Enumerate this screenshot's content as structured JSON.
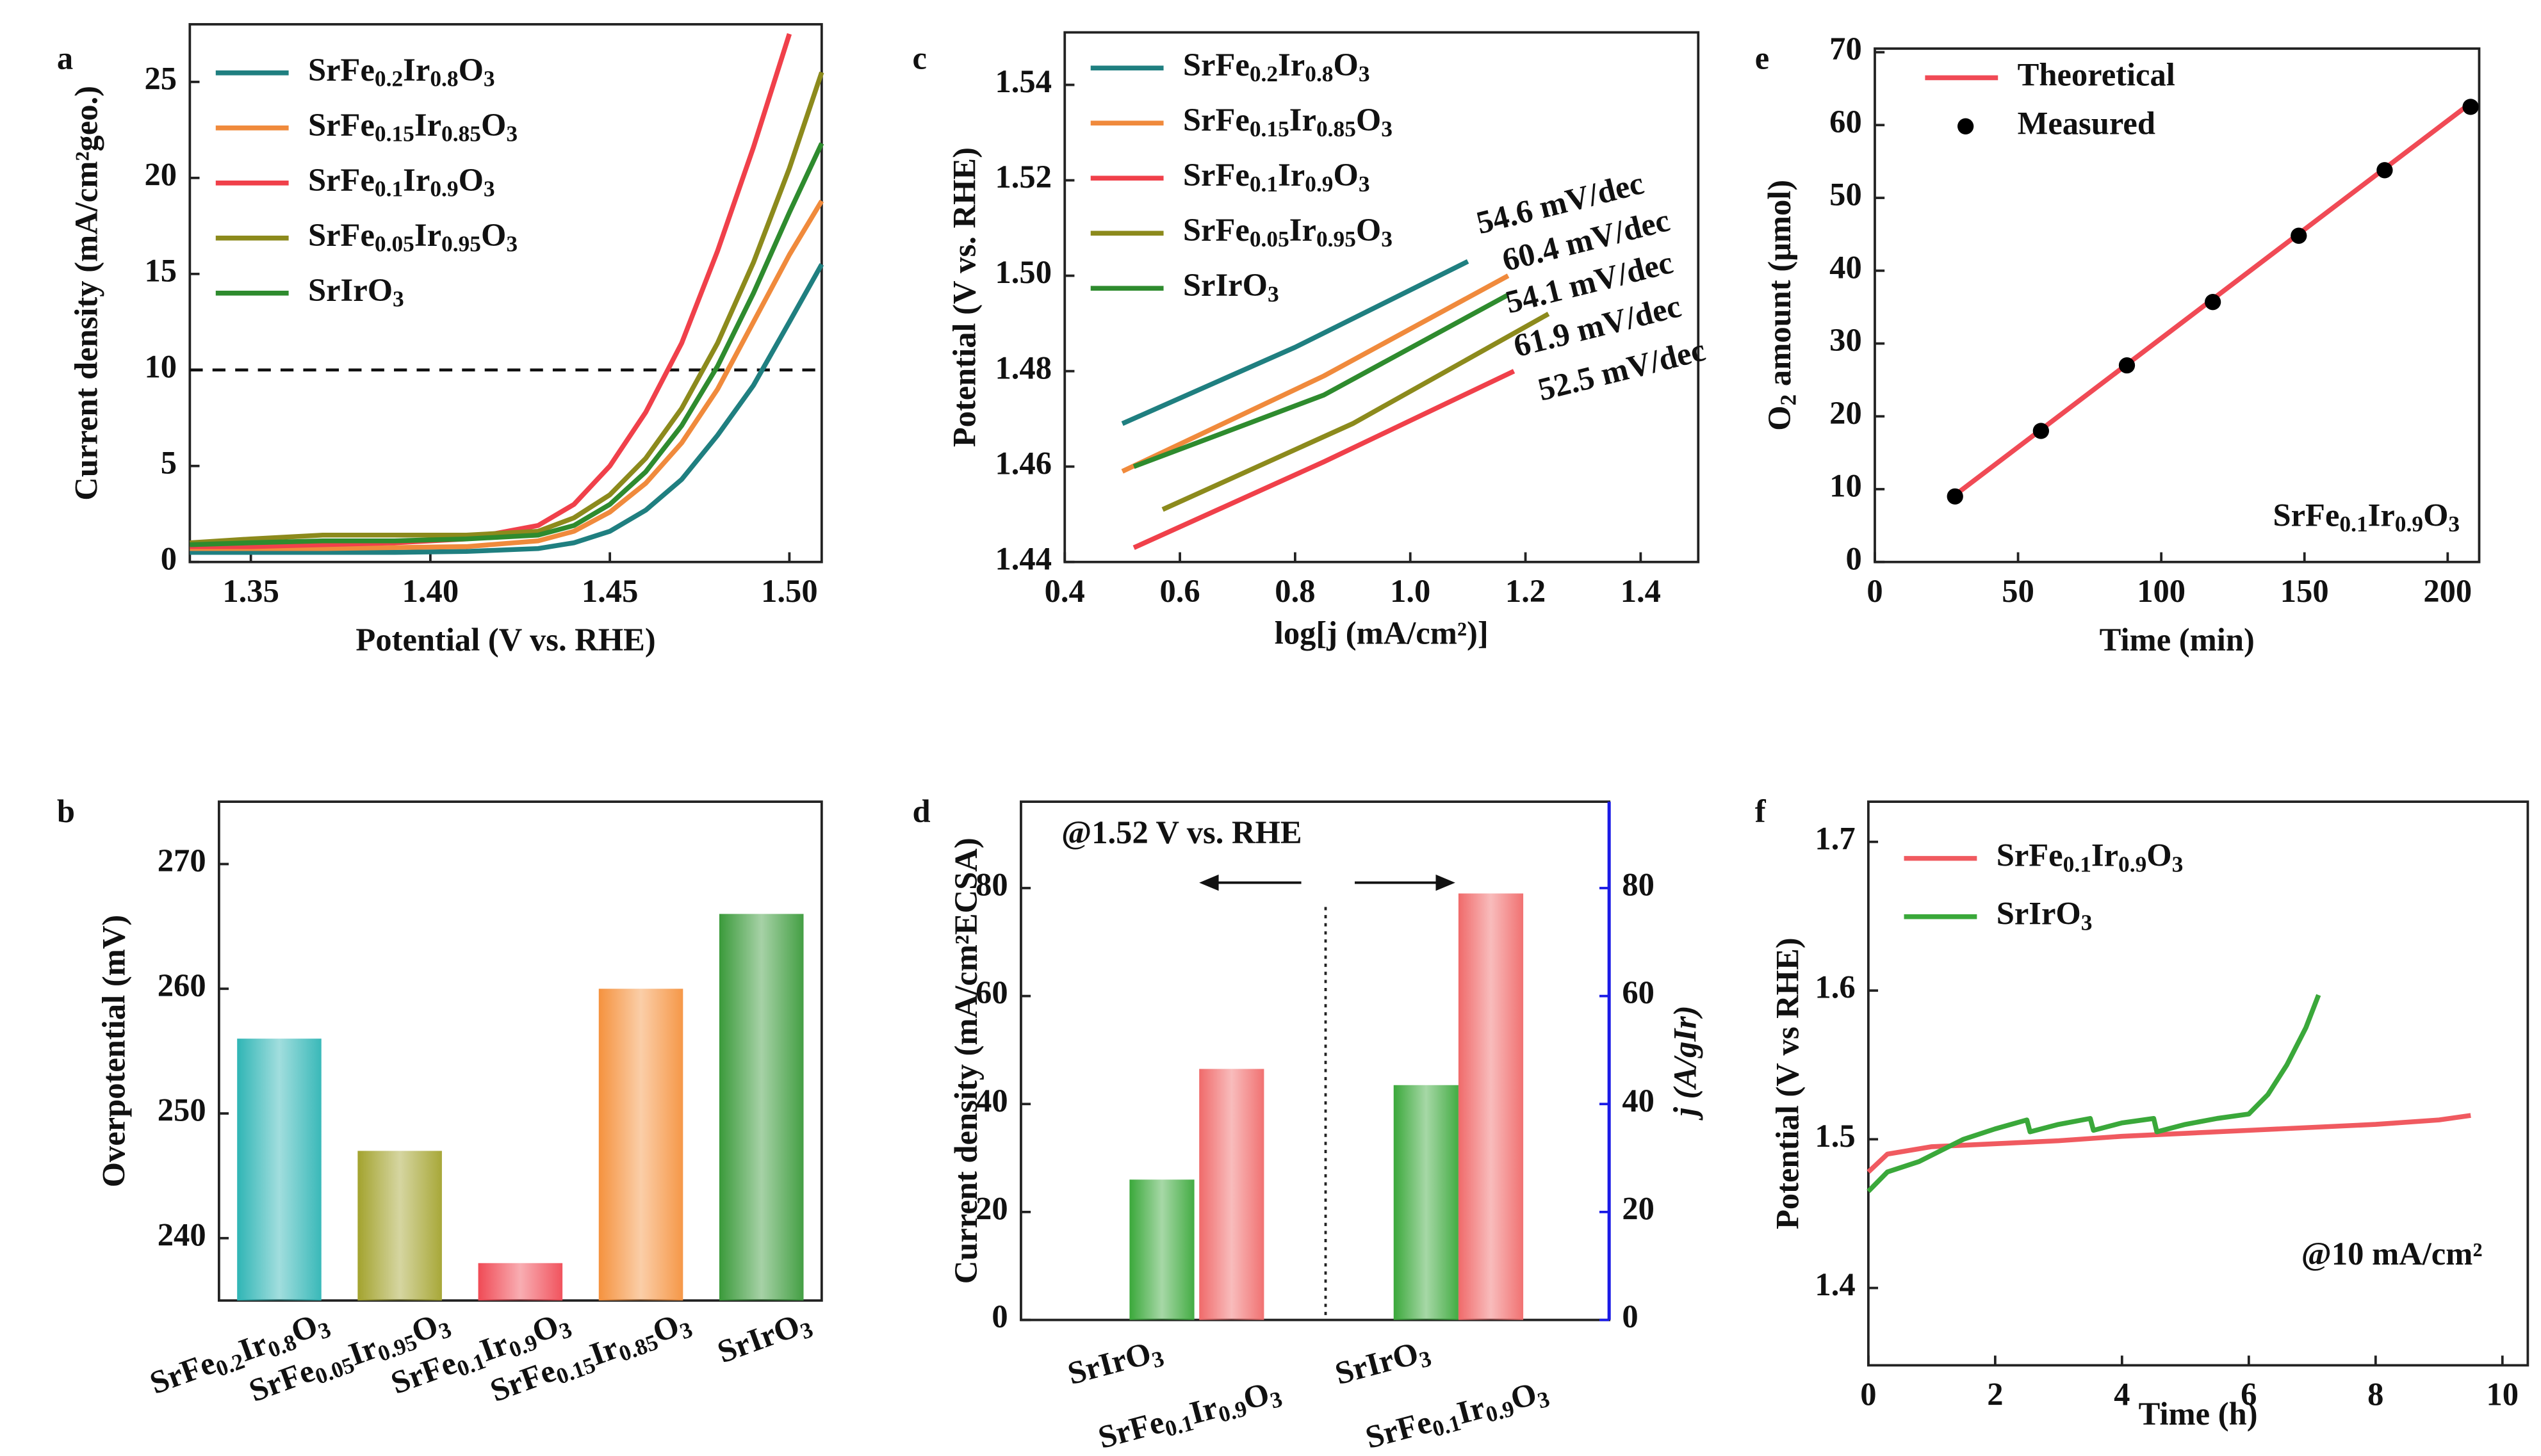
{
  "chart_data": [
    {
      "type": "line",
      "label": "a",
      "xlabel": "Potential (V vs. RHE)",
      "ylabel": "Current density (mA/cm²geo.)",
      "x": [
        1.333,
        1.35,
        1.37,
        1.39,
        1.41,
        1.43,
        1.44,
        1.45,
        1.46,
        1.47,
        1.48,
        1.49,
        1.5,
        1.509
      ],
      "xlim": [
        1.333,
        1.509
      ],
      "xticks": [
        1.35,
        {
          "value": 1.4,
          "label": "1.40"
        },
        1.45,
        {
          "value": 1.5,
          "label": "1.50"
        }
      ],
      "ylim": [
        0,
        28
      ],
      "yticks": [
        0,
        5,
        10,
        15,
        20,
        25
      ],
      "hline": 10,
      "legend": "upper left",
      "series": [
        {
          "name": "SrFe0.2Ir0.8O3",
          "color": "#1f7f80",
          "values": [
            0.5,
            0.5,
            0.5,
            0.5,
            0.55,
            0.7,
            1.0,
            1.6,
            2.7,
            4.3,
            6.6,
            9.2,
            12.5,
            15.5
          ]
        },
        {
          "name": "SrFe0.15Ir0.85O3",
          "color": "#f08a3c",
          "values": [
            0.7,
            0.7,
            0.7,
            0.75,
            0.8,
            1.1,
            1.6,
            2.6,
            4.1,
            6.2,
            9.0,
            12.5,
            16.0,
            18.8
          ]
        },
        {
          "name": "SrFe0.1Ir0.9O3",
          "color": "#f0404a",
          "values": [
            0.8,
            0.8,
            0.9,
            1.0,
            1.2,
            1.9,
            3.0,
            5.0,
            7.8,
            11.4,
            16.2,
            21.6,
            27.5,
            null
          ]
        },
        {
          "name": "SrFe0.05Ir0.95O3",
          "color": "#8c8a1c",
          "values": [
            1.0,
            1.2,
            1.4,
            1.4,
            1.4,
            1.6,
            2.3,
            3.5,
            5.4,
            8.0,
            11.4,
            15.6,
            20.5,
            25.5
          ]
        },
        {
          "name": "SrIrO3",
          "color": "#2e8b2e",
          "values": [
            0.9,
            1.0,
            1.1,
            1.1,
            1.2,
            1.4,
            1.9,
            3.0,
            4.7,
            7.1,
            10.2,
            14.0,
            18.2,
            21.8
          ]
        }
      ]
    },
    {
      "type": "bar",
      "label": "b",
      "ylabel": "Overpotential (mV)",
      "categories": [
        "SrFe0.2Ir0.8O3",
        "SrFe0.05Ir0.95O3",
        "SrFe0.1Ir0.9O3",
        "SrFe0.15Ir0.85O3",
        "SrIrO3"
      ],
      "values": [
        256,
        247,
        238,
        260,
        266
      ],
      "colors": [
        "#2fb5b5",
        "#a3a32e",
        "#f04a55",
        "#f5923e",
        "#3a9a3a"
      ],
      "ylim": [
        235,
        275
      ],
      "yticks": [
        240,
        250,
        260,
        270
      ]
    },
    {
      "type": "line",
      "label": "c",
      "xlabel": "log[j (mA/cm²)]",
      "ylabel": "Potential (V vs. RHE)",
      "xlim": [
        0.4,
        1.5
      ],
      "xticks": [
        0.4,
        0.6,
        0.8,
        {
          "value": 1,
          "label": "1.0"
        },
        1.2,
        1.4
      ],
      "ylim": [
        1.44,
        1.551
      ],
      "yticks": [
        1.44,
        1.46,
        1.48,
        {
          "value": 1.5,
          "label": "1.50"
        },
        1.52,
        1.54
      ],
      "legend": "upper left",
      "series": [
        {
          "name": "SrFe0.2Ir0.8O3",
          "color": "#1f7f80",
          "annotation": "54.6 mV/dec",
          "x": [
            0.5,
            0.8,
            1.1
          ],
          "values": [
            1.469,
            1.485,
            1.503
          ]
        },
        {
          "name": "SrFe0.15Ir0.85O3",
          "color": "#f08a3c",
          "annotation": "60.4 mV/dec",
          "x": [
            0.5,
            0.85,
            1.17
          ],
          "values": [
            1.459,
            1.479,
            1.5
          ]
        },
        {
          "name": "SrFe0.1Ir0.9O3",
          "color": "#f0404a",
          "annotation": "52.5 mV/dec",
          "x": [
            0.52,
            0.85,
            1.18
          ],
          "values": [
            1.443,
            1.461,
            1.48
          ]
        },
        {
          "name": "SrFe0.05Ir0.95O3",
          "color": "#8c8a1c",
          "annotation": "61.9 mV/dec",
          "x": [
            0.57,
            0.9,
            1.24
          ],
          "values": [
            1.451,
            1.469,
            1.492
          ]
        },
        {
          "name": "SrIrO3",
          "color": "#2e8b2e",
          "annotation": "54.1 mV/dec",
          "x": [
            0.52,
            0.85,
            1.17
          ],
          "values": [
            1.46,
            1.475,
            1.496
          ]
        }
      ]
    },
    {
      "type": "bar",
      "label": "d",
      "annotation": "@1.52 V vs. RHE",
      "ylabel": "Current density (mA/cm²ECSA)",
      "y2label": "j (A/gIr)",
      "ylim": [
        0,
        96
      ],
      "yticks": [
        0,
        20,
        40,
        60,
        80
      ],
      "y2lim": [
        0,
        96
      ],
      "y2ticks": [
        0,
        20,
        40,
        60,
        80
      ],
      "groups": [
        {
          "axis": "y",
          "categories": [
            "SrIrO3",
            "SrFe0.1Ir0.9O3"
          ],
          "values": [
            26,
            46.5
          ],
          "colors": [
            "#3aa83a",
            "#f06a6a"
          ]
        },
        {
          "axis": "y2",
          "categories": [
            "SrIrO3",
            "SrFe0.1Ir0.9O3"
          ],
          "values": [
            43.5,
            79
          ],
          "colors": [
            "#3aa83a",
            "#f06a6a"
          ]
        }
      ]
    },
    {
      "type": "scatter",
      "label": "e",
      "xlabel": "Time (min)",
      "ylabel": "O2 amount (μmol)",
      "annotation": "SrFe0.1Ir0.9O3",
      "xlim": [
        0,
        211
      ],
      "xticks": [
        0,
        50,
        100,
        150,
        200
      ],
      "ylim": [
        0,
        70.5
      ],
      "yticks": [
        0,
        10,
        20,
        30,
        40,
        50,
        60,
        70
      ],
      "legend": "upper left",
      "series": [
        {
          "name": "Theoretical",
          "color": "#f04a55",
          "style": "line",
          "x": [
            28,
            208
          ],
          "values": [
            9.2,
            63
          ]
        },
        {
          "name": "Measured",
          "color": "#000000",
          "style": "points",
          "x": [
            28,
            58,
            88,
            118,
            148,
            178,
            208
          ],
          "values": [
            9,
            18,
            27,
            35.7,
            44.8,
            53.8,
            62.5
          ]
        }
      ]
    },
    {
      "type": "line",
      "label": "f",
      "xlabel": "Time (h)",
      "ylabel": "Potential (V vs RHE)",
      "annotation": "@10 mA/cm²",
      "xlim": [
        0,
        10.4
      ],
      "xticks": [
        0,
        2,
        4,
        6,
        8,
        10
      ],
      "ylim": [
        1.348,
        1.727
      ],
      "yticks": [
        1.4,
        1.5,
        1.6,
        1.7
      ],
      "legend": "upper left",
      "series": [
        {
          "name": "SrFe0.1Ir0.9O3",
          "color": "#f05a60",
          "x": [
            0,
            0.3,
            1,
            2,
            3,
            4,
            5,
            6,
            7,
            8,
            9,
            9.5
          ],
          "values": [
            1.478,
            1.49,
            1.495,
            1.497,
            1.499,
            1.502,
            1.504,
            1.506,
            1.508,
            1.51,
            1.513,
            1.516
          ]
        },
        {
          "name": "SrIrO3",
          "color": "#3aa83a",
          "x": [
            0,
            0.3,
            0.8,
            1.5,
            2,
            2.5,
            2.55,
            3,
            3.5,
            3.55,
            4,
            4.5,
            4.55,
            5,
            5.5,
            6,
            6.3,
            6.6,
            6.9,
            7.1
          ],
          "values": [
            1.465,
            1.478,
            1.485,
            1.5,
            1.507,
            1.513,
            1.505,
            1.51,
            1.514,
            1.506,
            1.511,
            1.514,
            1.505,
            1.51,
            1.514,
            1.517,
            1.53,
            1.55,
            1.575,
            1.597
          ]
        }
      ]
    }
  ]
}
